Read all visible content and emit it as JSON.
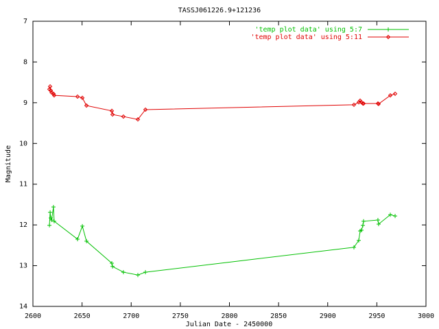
{
  "chart_data": {
    "type": "line",
    "title": "TASSJ061226.9+121236",
    "x_label": "Julian Date - 2450000",
    "y_label": "Magnitude",
    "x": [
      2616.8,
      2617.5,
      2618.2,
      2619.0,
      2620.9,
      2621.6,
      2645.4,
      2650.3,
      2654.5,
      2680.3,
      2681.0,
      2692.1,
      2706.8,
      2714.5,
      2926.7,
      2931.6,
      2933.0,
      2934.4,
      2935.8,
      2936.5,
      2951.1,
      2951.8,
      2963.7,
      2968.6
    ],
    "series": [
      {
        "name": "'temp plot data' using 5:7",
        "color": "#00c000",
        "marker": "plus",
        "values": [
          12.01,
          11.69,
          11.83,
          11.88,
          11.56,
          11.91,
          12.35,
          12.03,
          12.4,
          12.94,
          13.02,
          13.16,
          13.23,
          13.16,
          12.55,
          12.38,
          12.15,
          12.13,
          12.01,
          11.91,
          11.88,
          11.98,
          11.75,
          11.78
        ]
      },
      {
        "name": "'temp plot data' using 5:11",
        "color": "#e00000",
        "marker": "diamond",
        "values": [
          8.67,
          8.6,
          8.7,
          8.75,
          8.78,
          8.82,
          8.85,
          8.88,
          9.07,
          9.2,
          9.29,
          9.34,
          9.41,
          9.17,
          9.05,
          8.99,
          8.95,
          8.99,
          9.02,
          9.02,
          9.02,
          9.03,
          8.82,
          8.78
        ]
      }
    ],
    "xlim": [
      2600,
      3000
    ],
    "xticks": [
      2600,
      2650,
      2700,
      2750,
      2800,
      2850,
      2900,
      2950,
      3000
    ],
    "ylim": [
      14,
      7
    ],
    "yticks": [
      7,
      8,
      9,
      10,
      11,
      12,
      13,
      14
    ],
    "legend": "top right"
  }
}
